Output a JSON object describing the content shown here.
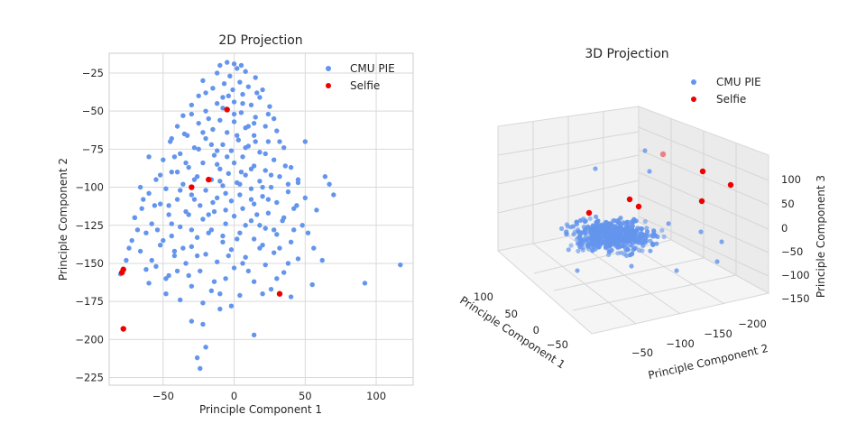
{
  "chart_data": [
    {
      "type": "scatter",
      "title": "2D Projection",
      "xlabel": "Principle Component 1",
      "ylabel": "Principle Component 2",
      "xlim": [
        -88,
        126
      ],
      "ylim": [
        -230,
        -12
      ],
      "xticks": [
        -50,
        0,
        50,
        100
      ],
      "yticks": [
        -225,
        -200,
        -175,
        -150,
        -125,
        -100,
        -75,
        -50,
        -25
      ],
      "grid": true,
      "legend": "top-right",
      "series": [
        {
          "name": "CMU PIE",
          "color": "#6495ed",
          "points": [
            [
              -10,
              -20
            ],
            [
              -5,
              -18
            ],
            [
              0,
              -19
            ],
            [
              5,
              -20
            ],
            [
              -12,
              -25
            ],
            [
              2,
              -22
            ],
            [
              8,
              -24
            ],
            [
              -3,
              -27
            ],
            [
              -22,
              -30
            ],
            [
              15,
              -28
            ],
            [
              -7,
              -32
            ],
            [
              4,
              -31
            ],
            [
              -15,
              -35
            ],
            [
              10,
              -34
            ],
            [
              -1,
              -36
            ],
            [
              20,
              -36
            ],
            [
              -25,
              -40
            ],
            [
              -8,
              -41
            ],
            [
              6,
              -39
            ],
            [
              18,
              -41
            ],
            [
              -12,
              -45
            ],
            [
              0,
              -44
            ],
            [
              -30,
              -46
            ],
            [
              12,
              -46
            ],
            [
              25,
              -47
            ],
            [
              -20,
              -50
            ],
            [
              5,
              -51
            ],
            [
              -36,
              -53
            ],
            [
              15,
              -54
            ],
            [
              28,
              -55
            ],
            [
              -10,
              -56
            ],
            [
              0,
              -57
            ],
            [
              -25,
              -58
            ],
            [
              22,
              -60
            ],
            [
              -40,
              -60
            ],
            [
              8,
              -61
            ],
            [
              -15,
              -62
            ],
            [
              -5,
              -64
            ],
            [
              30,
              -63
            ],
            [
              -33,
              -66
            ],
            [
              14,
              -66
            ],
            [
              -20,
              -68
            ],
            [
              3,
              -69
            ],
            [
              -45,
              -70
            ],
            [
              24,
              -70
            ],
            [
              -8,
              -72
            ],
            [
              10,
              -73
            ],
            [
              -28,
              -74
            ],
            [
              35,
              -74
            ],
            [
              -2,
              -76
            ],
            [
              18,
              -77
            ],
            [
              -38,
              -78
            ],
            [
              -14,
              -79
            ],
            [
              6,
              -80
            ],
            [
              -50,
              -82
            ],
            [
              28,
              -82
            ],
            [
              -22,
              -84
            ],
            [
              0,
              -84
            ],
            [
              14,
              -86
            ],
            [
              -32,
              -87
            ],
            [
              40,
              -87
            ],
            [
              -10,
              -88
            ],
            [
              22,
              -89
            ],
            [
              -44,
              -90
            ],
            [
              -4,
              -91
            ],
            [
              8,
              -92
            ],
            [
              -26,
              -93
            ],
            [
              32,
              -93
            ],
            [
              -55,
              -95
            ],
            [
              -16,
              -95
            ],
            [
              18,
              -96
            ],
            [
              2,
              -97
            ],
            [
              45,
              -97
            ],
            [
              -36,
              -98
            ],
            [
              -8,
              -99
            ],
            [
              26,
              -100
            ],
            [
              -48,
              -101
            ],
            [
              12,
              -101
            ],
            [
              -20,
              -102
            ],
            [
              38,
              -103
            ],
            [
              -60,
              -104
            ],
            [
              -30,
              -105
            ],
            [
              4,
              -105
            ],
            [
              20,
              -106
            ],
            [
              -12,
              -107
            ],
            [
              50,
              -107
            ],
            [
              -40,
              -108
            ],
            [
              -2,
              -109
            ],
            [
              30,
              -110
            ],
            [
              -52,
              -111
            ],
            [
              14,
              -111
            ],
            [
              -24,
              -112
            ],
            [
              -65,
              -114
            ],
            [
              6,
              -114
            ],
            [
              42,
              -114
            ],
            [
              -34,
              -116
            ],
            [
              -14,
              -116
            ],
            [
              24,
              -117
            ],
            [
              -46,
              -118
            ],
            [
              0,
              -119
            ],
            [
              -70,
              -120
            ],
            [
              35,
              -120
            ],
            [
              -22,
              -121
            ],
            [
              12,
              -122
            ],
            [
              -58,
              -124
            ],
            [
              -6,
              -124
            ],
            [
              48,
              -125
            ],
            [
              -38,
              -126
            ],
            [
              22,
              -127
            ],
            [
              -16,
              -128
            ],
            [
              -62,
              -130
            ],
            [
              4,
              -130
            ],
            [
              30,
              -131
            ],
            [
              -44,
              -132
            ],
            [
              -26,
              -133
            ],
            [
              14,
              -134
            ],
            [
              -72,
              -135
            ],
            [
              -8,
              -136
            ],
            [
              40,
              -136
            ],
            [
              -52,
              -138
            ],
            [
              -30,
              -139
            ],
            [
              18,
              -140
            ],
            [
              -2,
              -141
            ],
            [
              -66,
              -142
            ],
            [
              28,
              -143
            ],
            [
              -20,
              -144
            ],
            [
              -42,
              -145
            ],
            [
              8,
              -146
            ],
            [
              45,
              -147
            ],
            [
              -76,
              -148
            ],
            [
              -12,
              -149
            ],
            [
              -34,
              -150
            ],
            [
              22,
              -151
            ],
            [
              -55,
              -152
            ],
            [
              0,
              -153
            ],
            [
              -24,
              -155
            ],
            [
              35,
              -156
            ],
            [
              -46,
              -158
            ],
            [
              -6,
              -160
            ],
            [
              14,
              -162
            ],
            [
              -60,
              -163
            ],
            [
              -30,
              -165
            ],
            [
              26,
              -167
            ],
            [
              -16,
              -168
            ],
            [
              -48,
              -170
            ],
            [
              4,
              -171
            ],
            [
              40,
              -172
            ],
            [
              -38,
              -174
            ],
            [
              -22,
              -176
            ],
            [
              -10,
              -180
            ],
            [
              -30,
              -188
            ],
            [
              -20,
              -205
            ],
            [
              -26,
              -212
            ],
            [
              -24,
              -219
            ],
            [
              14,
              -197
            ],
            [
              55,
              -164
            ],
            [
              62,
              -148
            ],
            [
              92,
              -163
            ],
            [
              117,
              -151
            ],
            [
              67,
              -98
            ],
            [
              45,
              -95
            ],
            [
              -70,
              -120
            ],
            [
              -80,
              -157
            ],
            [
              -40,
              -90
            ],
            [
              20,
              -100
            ],
            [
              -15,
              -110
            ],
            [
              10,
              -60
            ],
            [
              -35,
              -65
            ],
            [
              -5,
              -80
            ],
            [
              5,
              -90
            ],
            [
              -25,
              -75
            ],
            [
              15,
              -70
            ],
            [
              -18,
              -55
            ],
            [
              -8,
              -48
            ],
            [
              2,
              -66
            ],
            [
              -12,
              -85
            ],
            [
              12,
              -88
            ],
            [
              -28,
              -95
            ],
            [
              -6,
              -104
            ],
            [
              24,
              -108
            ],
            [
              -32,
              -118
            ],
            [
              8,
              -125
            ],
            [
              -18,
              -130
            ],
            [
              -50,
              -135
            ],
            [
              28,
              -128
            ],
            [
              -4,
              -145
            ],
            [
              -36,
              -140
            ],
            [
              10,
              -155
            ],
            [
              -58,
              -148
            ],
            [
              -14,
              -162
            ],
            [
              20,
              -170
            ],
            [
              -40,
              -155
            ],
            [
              -26,
              -145
            ],
            [
              32,
              -140
            ],
            [
              -68,
              -128
            ],
            [
              -44,
              -124
            ],
            [
              16,
              -118
            ],
            [
              -56,
              -112
            ],
            [
              36,
              -86
            ],
            [
              -42,
              -80
            ],
            [
              22,
              -78
            ],
            [
              -16,
              -72
            ],
            [
              6,
              -45
            ],
            [
              -20,
              -38
            ],
            [
              16,
              -38
            ],
            [
              -30,
              -52
            ],
            [
              0,
              -52
            ],
            [
              -44,
              -68
            ],
            [
              32,
              -70
            ],
            [
              -52,
              -92
            ],
            [
              -10,
              -96
            ],
            [
              38,
              -98
            ],
            [
              -64,
              -108
            ],
            [
              44,
              -112
            ],
            [
              -74,
              -140
            ],
            [
              52,
              -130
            ],
            [
              -48,
              -160
            ],
            [
              30,
              -160
            ],
            [
              -22,
              -190
            ],
            [
              64,
              -93
            ],
            [
              70,
              -105
            ],
            [
              50,
              -70
            ],
            [
              -60,
              -80
            ],
            [
              -6,
              -115
            ],
            [
              18,
              -125
            ],
            [
              -28,
              -108
            ],
            [
              2,
              -134
            ],
            [
              -38,
              -102
            ],
            [
              26,
              -92
            ],
            [
              -12,
              -76
            ],
            [
              8,
              -74
            ],
            [
              -22,
              -64
            ],
            [
              14,
              -58
            ],
            [
              -4,
              -40
            ],
            [
              24,
              -52
            ],
            [
              -34,
              -84
            ],
            [
              4,
              -98
            ],
            [
              -46,
              -112
            ],
            [
              12,
              -108
            ],
            [
              -18,
              -118
            ],
            [
              34,
              -122
            ],
            [
              -30,
              -128
            ],
            [
              -8,
              -132
            ],
            [
              20,
              -138
            ],
            [
              -42,
              -142
            ],
            [
              6,
              -150
            ],
            [
              -62,
              -154
            ],
            [
              -32,
              -158
            ],
            [
              38,
              -150
            ],
            [
              -54,
              -128
            ],
            [
              42,
              -128
            ],
            [
              -10,
              -170
            ],
            [
              -2,
              -178
            ],
            [
              56,
              -140
            ],
            [
              -66,
              -100
            ],
            [
              58,
              -115
            ]
          ]
        },
        {
          "name": "Selfie",
          "color": "#ee0000",
          "points": [
            [
              -5,
              -49
            ],
            [
              -30,
              -100
            ],
            [
              -18,
              -95
            ],
            [
              -78,
              -154
            ],
            [
              -79,
              -156
            ],
            [
              -78,
              -193
            ],
            [
              32,
              -170
            ]
          ]
        }
      ]
    },
    {
      "type": "scatter",
      "title": "3D Projection",
      "xlabel": "Principle Component 1",
      "ylabel": "Principle Component 2",
      "zlabel": "Principle Component 3",
      "xticks": [
        -50,
        0,
        50,
        100
      ],
      "yticks": [
        -50,
        -100,
        -150,
        -200
      ],
      "zticks": [
        -150,
        -100,
        -50,
        0,
        50,
        100
      ],
      "grid": true,
      "legend": "top-right",
      "series": [
        {
          "name": "CMU PIE",
          "color": "#6495ed"
        },
        {
          "name": "Selfie",
          "color": "#ee0000"
        }
      ]
    }
  ]
}
